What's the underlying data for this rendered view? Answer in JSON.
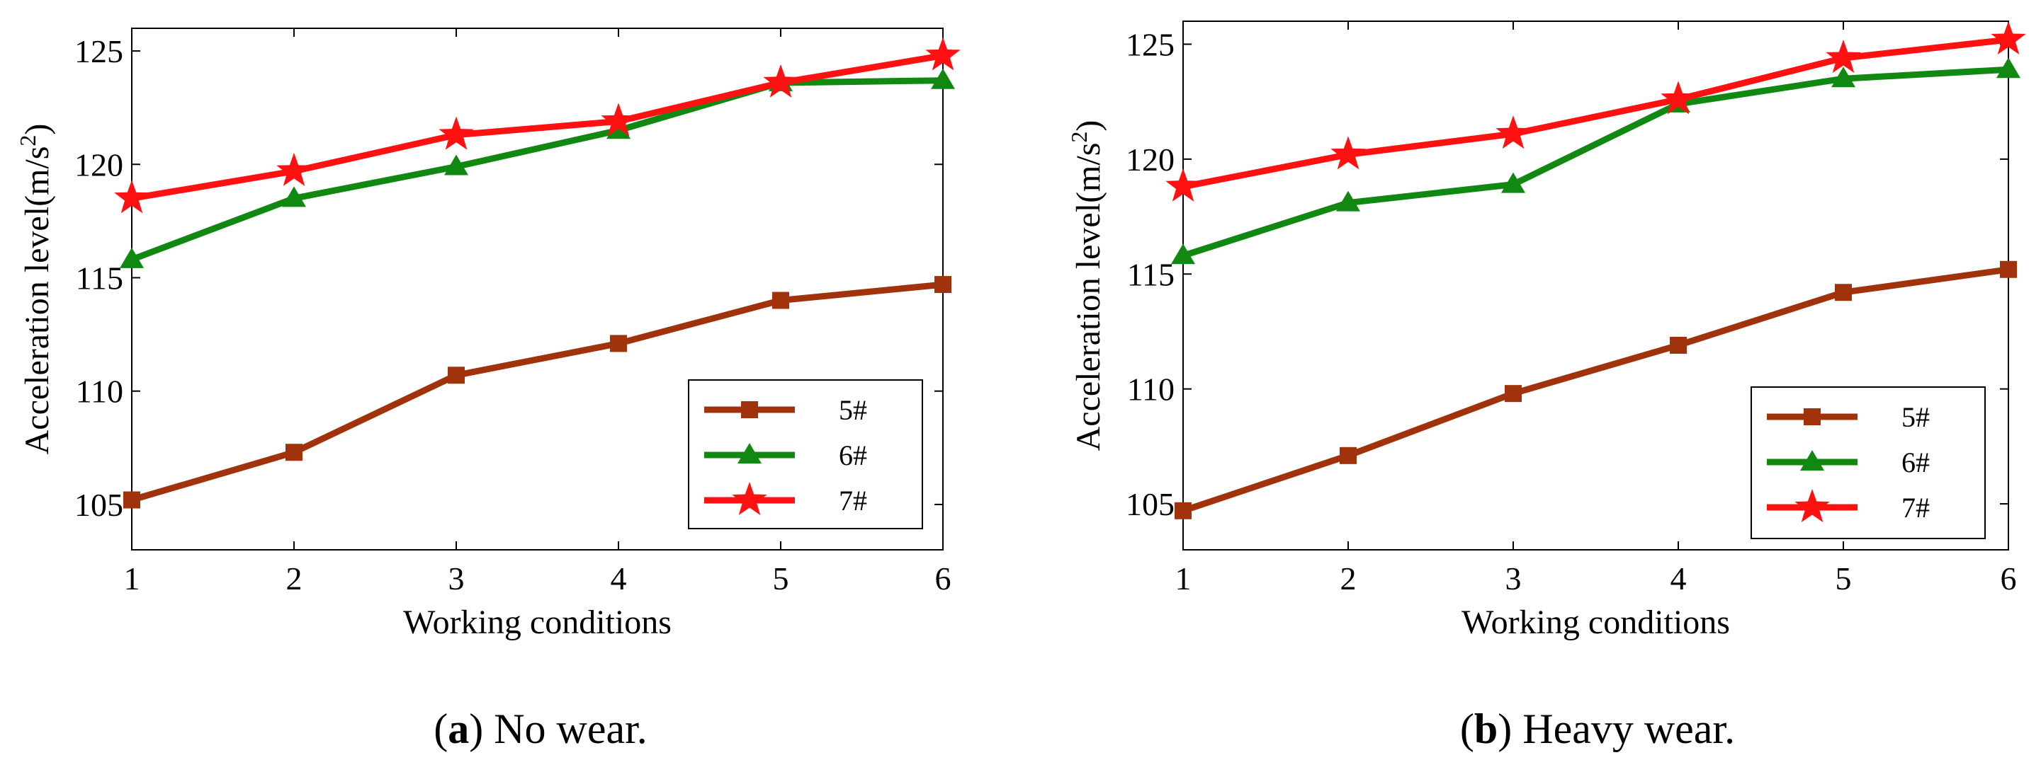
{
  "chart_data": [
    {
      "type": "line",
      "caption_letter": "a",
      "caption_text": "No wear.",
      "xlabel": "Working conditions",
      "ylabel_main": "Acceleration level(m/s",
      "ylabel_sup": "2",
      "ylabel_close": ")",
      "x": [
        1,
        2,
        3,
        4,
        5,
        6
      ],
      "xlim": [
        1,
        6
      ],
      "ylim": [
        103,
        126
      ],
      "yticks": [
        105,
        110,
        115,
        120,
        125
      ],
      "legend_position": "lower-right",
      "series": [
        {
          "name": "5#",
          "color": "#a0330b",
          "marker": "square",
          "values": [
            105.2,
            107.3,
            110.7,
            112.1,
            114.0,
            114.7
          ]
        },
        {
          "name": "6#",
          "color": "#118811",
          "marker": "triangle",
          "values": [
            115.8,
            118.5,
            119.9,
            121.5,
            123.6,
            123.7
          ]
        },
        {
          "name": "7#",
          "color": "#ff1111",
          "marker": "star",
          "values": [
            118.5,
            119.7,
            121.3,
            121.9,
            123.6,
            124.8
          ]
        }
      ]
    },
    {
      "type": "line",
      "caption_letter": "b",
      "caption_text": "Heavy wear.",
      "xlabel": "Working conditions",
      "ylabel_main": "Acceleration level(m/s",
      "ylabel_sup": "2",
      "ylabel_close": ")",
      "x": [
        1,
        2,
        3,
        4,
        5,
        6
      ],
      "xlim": [
        1,
        6
      ],
      "ylim": [
        103,
        126
      ],
      "yticks": [
        105,
        110,
        115,
        120,
        125
      ],
      "legend_position": "lower-right",
      "series": [
        {
          "name": "5#",
          "color": "#a0330b",
          "marker": "square",
          "values": [
            104.7,
            107.1,
            109.8,
            111.9,
            114.2,
            115.2
          ]
        },
        {
          "name": "6#",
          "color": "#118811",
          "marker": "triangle",
          "values": [
            115.8,
            118.1,
            118.9,
            122.4,
            123.5,
            123.9
          ]
        },
        {
          "name": "7#",
          "color": "#ff1111",
          "marker": "star",
          "values": [
            118.8,
            120.2,
            121.1,
            122.6,
            124.4,
            125.2
          ]
        }
      ]
    }
  ]
}
